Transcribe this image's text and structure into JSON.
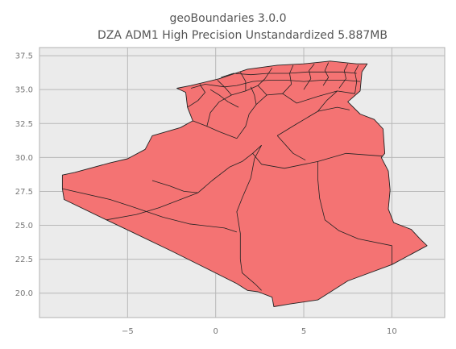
{
  "figure": {
    "title_line1": "geoBoundaries 3.0.0",
    "title_line2": "DZA ADM1 High Precision Unstandardized 5.887MB"
  },
  "map": {
    "country_code": "DZA",
    "fill_color": "#f47373",
    "edge_color": "#222222",
    "background_color": "#ebebeb",
    "axis_frame_color": "#b0b0b0"
  },
  "chart_data": {
    "type": "map",
    "title": "geoBoundaries 3.0.0\nDZA ADM1 High Precision Unstandardized 5.887MB",
    "xlim": [
      -10,
      13
    ],
    "ylim": [
      18.2,
      38.1
    ],
    "grid": true,
    "x_ticks": [
      -5,
      0,
      5,
      10
    ],
    "x_tick_labels": [
      "−5",
      "0",
      "5",
      "10"
    ],
    "y_ticks": [
      20.0,
      22.5,
      25.0,
      27.5,
      30.0,
      32.5,
      35.0,
      37.5
    ],
    "y_tick_labels": [
      "20.0",
      "22.5",
      "25.0",
      "27.5",
      "30.0",
      "32.5",
      "35.0",
      "37.5"
    ],
    "outline": [
      [
        -2.2,
        35.1
      ],
      [
        -1.4,
        35.3
      ],
      [
        0.2,
        35.8
      ],
      [
        1.8,
        36.5
      ],
      [
        3.5,
        36.8
      ],
      [
        5.0,
        36.9
      ],
      [
        6.5,
        37.1
      ],
      [
        8.0,
        36.9
      ],
      [
        8.6,
        36.9
      ],
      [
        8.3,
        36.3
      ],
      [
        8.2,
        34.9
      ],
      [
        7.5,
        34.1
      ],
      [
        8.2,
        33.2
      ],
      [
        9.0,
        32.8
      ],
      [
        9.5,
        32.1
      ],
      [
        9.6,
        30.3
      ],
      [
        9.4,
        30.0
      ],
      [
        9.8,
        29.0
      ],
      [
        9.9,
        27.6
      ],
      [
        9.8,
        26.2
      ],
      [
        10.1,
        25.2
      ],
      [
        11.1,
        24.7
      ],
      [
        11.6,
        24.0
      ],
      [
        12.0,
        23.5
      ],
      [
        10.0,
        22.1
      ],
      [
        7.5,
        20.9
      ],
      [
        5.8,
        19.5
      ],
      [
        4.2,
        19.2
      ],
      [
        3.3,
        19.0
      ],
      [
        3.2,
        19.7
      ],
      [
        2.4,
        20.1
      ],
      [
        1.8,
        20.2
      ],
      [
        1.2,
        20.7
      ],
      [
        -0.8,
        22.0
      ],
      [
        -2.5,
        23.1
      ],
      [
        -4.9,
        24.6
      ],
      [
        -6.2,
        25.4
      ],
      [
        -8.6,
        26.9
      ],
      [
        -8.7,
        27.7
      ],
      [
        -8.7,
        28.7
      ],
      [
        -8.0,
        28.9
      ],
      [
        -6.0,
        29.6
      ],
      [
        -5.0,
        29.9
      ],
      [
        -4.0,
        30.6
      ],
      [
        -3.6,
        31.6
      ],
      [
        -2.0,
        32.2
      ],
      [
        -1.3,
        32.7
      ],
      [
        -1.6,
        33.7
      ],
      [
        -1.7,
        34.8
      ],
      [
        -2.2,
        35.1
      ]
    ],
    "internal_boundaries": [
      [
        [
          -1.3,
          32.7
        ],
        [
          -0.5,
          32.3
        ],
        [
          0.2,
          31.9
        ],
        [
          1.2,
          31.4
        ]
      ],
      [
        [
          -8.7,
          27.7
        ],
        [
          -6.0,
          26.9
        ],
        [
          -4.8,
          26.4
        ],
        [
          -3.0,
          25.6
        ],
        [
          -1.5,
          25.1
        ],
        [
          0.5,
          24.8
        ],
        [
          1.2,
          24.5
        ]
      ],
      [
        [
          -6.2,
          25.4
        ],
        [
          -4.5,
          25.8
        ],
        [
          -3.2,
          26.3
        ],
        [
          -2.0,
          26.9
        ],
        [
          -1.0,
          27.4
        ],
        [
          -0.2,
          28.3
        ],
        [
          0.8,
          29.3
        ],
        [
          1.5,
          29.7
        ],
        [
          2.1,
          30.3
        ],
        [
          2.6,
          30.9
        ]
      ],
      [
        [
          1.2,
          31.4
        ],
        [
          1.7,
          32.3
        ],
        [
          1.9,
          33.2
        ],
        [
          2.3,
          33.9
        ],
        [
          2.9,
          34.6
        ]
      ],
      [
        [
          -1.0,
          27.4
        ],
        [
          -1.8,
          27.5
        ],
        [
          -2.6,
          27.9
        ],
        [
          -3.6,
          28.3
        ]
      ],
      [
        [
          2.1,
          30.3
        ],
        [
          2.6,
          29.5
        ],
        [
          3.9,
          29.2
        ],
        [
          5.8,
          29.7
        ],
        [
          7.4,
          30.3
        ],
        [
          9.5,
          30.1
        ]
      ],
      [
        [
          3.5,
          31.6
        ],
        [
          4.4,
          30.3
        ],
        [
          5.1,
          29.8
        ]
      ],
      [
        [
          2.6,
          30.9
        ],
        [
          2.2,
          29.9
        ],
        [
          2.0,
          28.5
        ],
        [
          1.5,
          27.0
        ],
        [
          1.2,
          26.0
        ],
        [
          1.4,
          24.4
        ],
        [
          1.4,
          22.5
        ],
        [
          1.5,
          21.5
        ],
        [
          2.3,
          20.6
        ],
        [
          2.6,
          20.2
        ]
      ],
      [
        [
          5.8,
          29.7
        ],
        [
          5.8,
          28.4
        ],
        [
          5.9,
          27.0
        ],
        [
          6.2,
          25.4
        ],
        [
          7.0,
          24.6
        ],
        [
          8.1,
          24.0
        ],
        [
          10.0,
          23.5
        ],
        [
          10.0,
          22.1
        ]
      ],
      [
        [
          3.5,
          31.6
        ],
        [
          4.5,
          32.4
        ],
        [
          5.8,
          33.4
        ],
        [
          6.9,
          33.7
        ],
        [
          7.6,
          33.5
        ]
      ],
      [
        [
          4.6,
          34.0
        ],
        [
          5.8,
          34.5
        ],
        [
          6.9,
          34.9
        ],
        [
          7.9,
          34.7
        ]
      ],
      [
        [
          -0.5,
          32.3
        ],
        [
          -0.3,
          33.3
        ],
        [
          0.2,
          34.1
        ],
        [
          0.9,
          34.6
        ],
        [
          1.7,
          34.9
        ],
        [
          2.4,
          35.3
        ],
        [
          2.9,
          34.6
        ],
        [
          3.8,
          34.7
        ],
        [
          4.6,
          34.0
        ]
      ],
      [
        [
          0.9,
          34.6
        ],
        [
          0.5,
          35.2
        ],
        [
          0.1,
          35.7
        ]
      ],
      [
        [
          -1.6,
          33.7
        ],
        [
          -1.0,
          34.2
        ],
        [
          -0.6,
          34.8
        ],
        [
          -0.9,
          35.4
        ]
      ],
      [
        [
          1.7,
          34.9
        ],
        [
          1.7,
          35.6
        ],
        [
          1.4,
          36.3
        ]
      ],
      [
        [
          2.4,
          35.3
        ],
        [
          2.8,
          35.8
        ],
        [
          3.2,
          36.6
        ]
      ],
      [
        [
          3.8,
          34.7
        ],
        [
          4.3,
          35.4
        ],
        [
          4.2,
          36.2
        ],
        [
          4.4,
          36.8
        ]
      ],
      [
        [
          5.0,
          35.0
        ],
        [
          5.4,
          35.8
        ],
        [
          5.3,
          36.4
        ],
        [
          5.6,
          36.9
        ]
      ],
      [
        [
          6.1,
          35.3
        ],
        [
          6.4,
          35.9
        ],
        [
          6.2,
          36.4
        ],
        [
          6.4,
          37.0
        ]
      ],
      [
        [
          7.0,
          35.1
        ],
        [
          7.4,
          35.8
        ],
        [
          7.3,
          36.4
        ],
        [
          7.5,
          36.9
        ]
      ],
      [
        [
          7.9,
          34.7
        ],
        [
          8.0,
          35.6
        ],
        [
          7.9,
          36.3
        ],
        [
          8.1,
          36.8
        ]
      ],
      [
        [
          -1.4,
          35.1
        ],
        [
          -0.6,
          35.4
        ],
        [
          0.5,
          35.2
        ],
        [
          1.2,
          35.3
        ],
        [
          2.1,
          35.6
        ],
        [
          3.1,
          35.7
        ],
        [
          4.0,
          35.7
        ],
        [
          5.0,
          35.6
        ],
        [
          6.1,
          35.7
        ],
        [
          7.3,
          35.7
        ],
        [
          8.2,
          35.6
        ]
      ],
      [
        [
          0.3,
          35.9
        ],
        [
          1.0,
          36.2
        ],
        [
          2.0,
          36.1
        ],
        [
          3.0,
          36.2
        ],
        [
          4.1,
          36.2
        ],
        [
          5.2,
          36.3
        ],
        [
          6.3,
          36.3
        ],
        [
          7.2,
          36.3
        ],
        [
          8.0,
          36.2
        ]
      ],
      [
        [
          -0.3,
          35.0
        ],
        [
          0.2,
          34.6
        ],
        [
          0.7,
          34.1
        ],
        [
          1.3,
          33.7
        ]
      ],
      [
        [
          5.8,
          33.4
        ],
        [
          6.3,
          34.2
        ],
        [
          6.9,
          34.9
        ]
      ],
      [
        [
          2.3,
          33.9
        ],
        [
          2.2,
          34.6
        ],
        [
          2.0,
          35.2
        ]
      ]
    ]
  }
}
